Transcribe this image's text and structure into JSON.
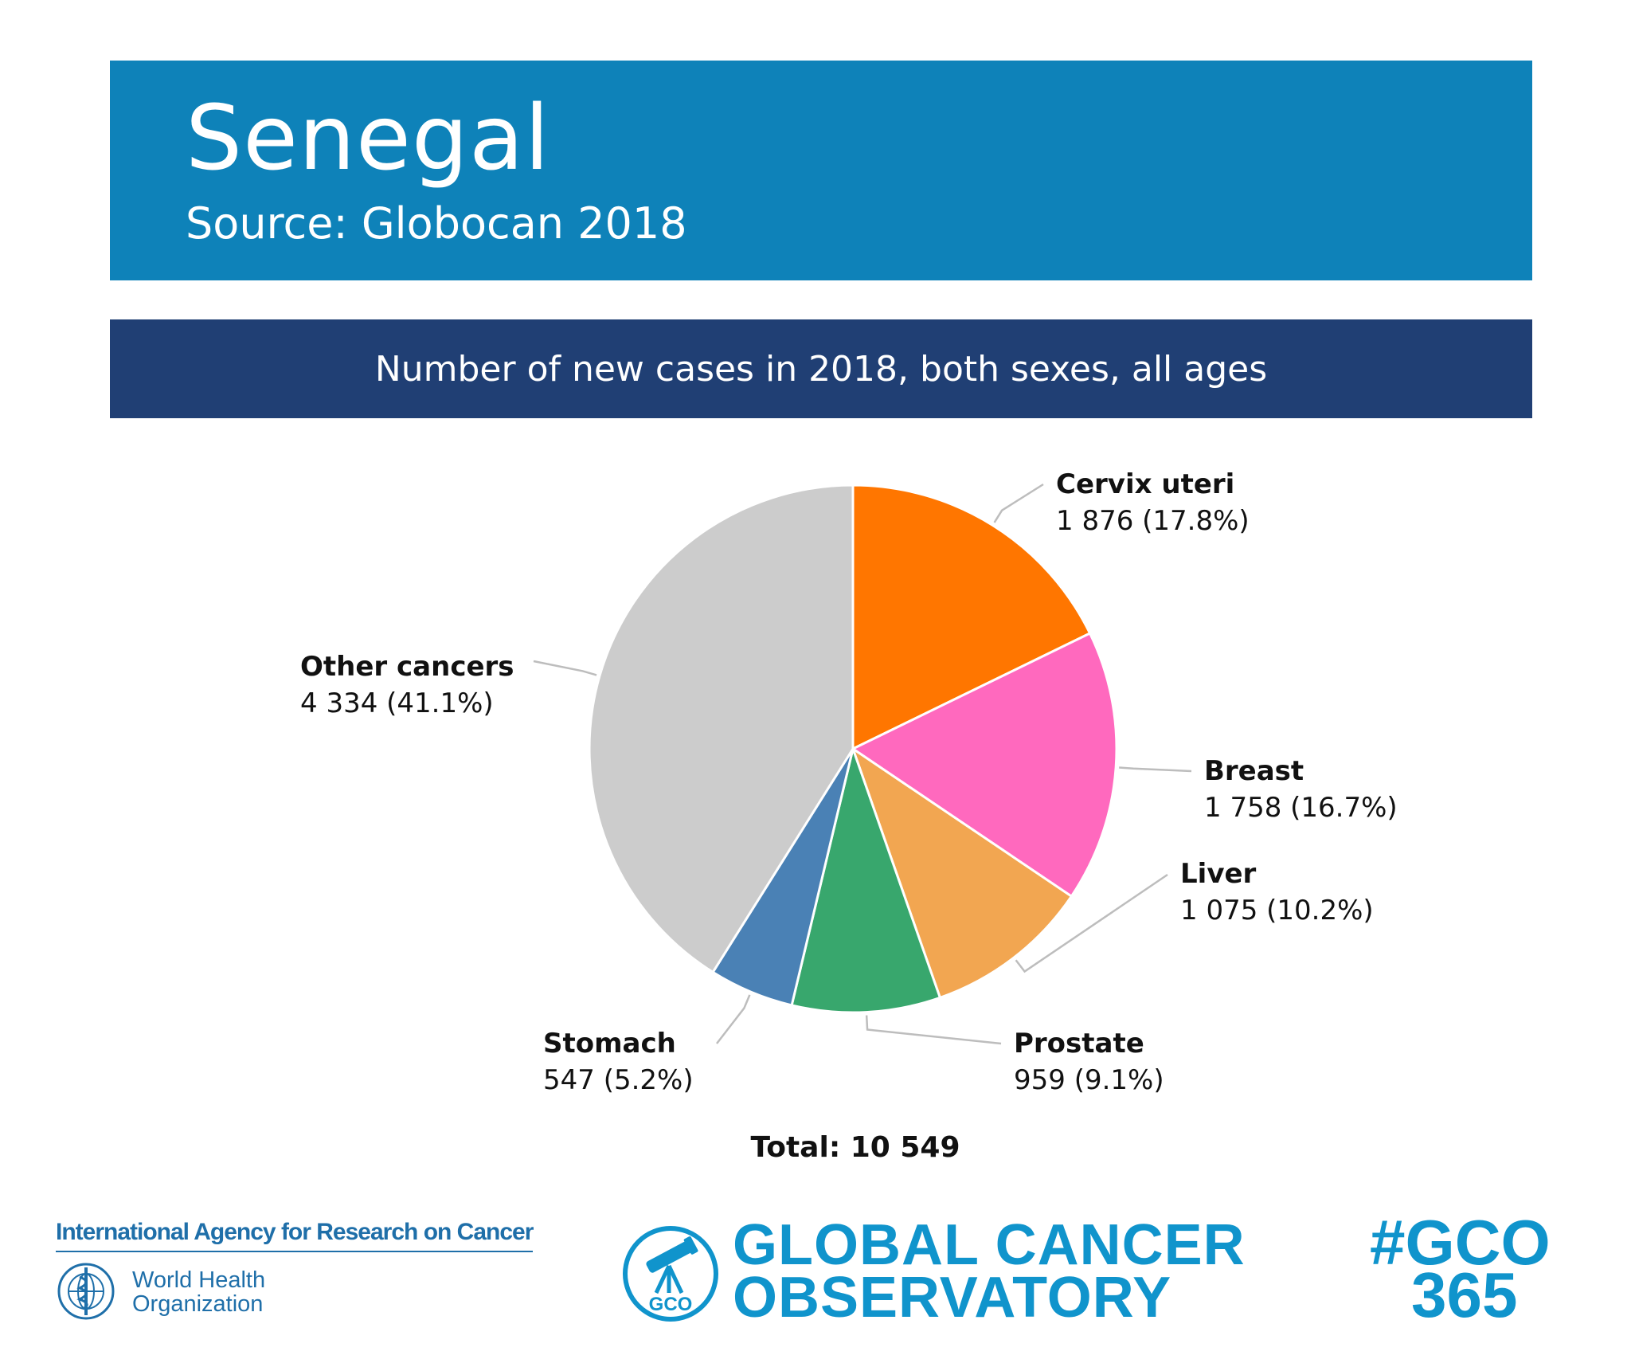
{
  "header": {
    "country": "Senegal",
    "source": "Source: Globocan 2018"
  },
  "subtitle": "Number of new cases in 2018, both sexes, all ages",
  "chart_data": {
    "type": "pie",
    "title": "Number of new cases in 2018, both sexes, all ages",
    "slices": [
      {
        "name": "Cervix uteri",
        "value": 1876,
        "percent": 17.8,
        "display": "1 876 (17.8%)",
        "color": "#ff7600"
      },
      {
        "name": "Breast",
        "value": 1758,
        "percent": 16.7,
        "display": "1 758 (16.7%)",
        "color": "#ff69be"
      },
      {
        "name": "Liver",
        "value": 1075,
        "percent": 10.2,
        "display": "1 075 (10.2%)",
        "color": "#f2a651"
      },
      {
        "name": "Prostate",
        "value": 959,
        "percent": 9.1,
        "display": "959 (9.1%)",
        "color": "#38a76d"
      },
      {
        "name": "Stomach",
        "value": 547,
        "percent": 5.2,
        "display": "547 (5.2%)",
        "color": "#4a81b5"
      },
      {
        "name": "Other cancers",
        "value": 4334,
        "percent": 41.1,
        "display": "4 334 (41.1%)",
        "color": "#cccccc"
      }
    ],
    "total_label": "Total: 10 549"
  },
  "footer": {
    "iarc": "International Agency for Research on Cancer",
    "who_line1": "World Health",
    "who_line2": "Organization",
    "gco_line1": "GLOBAL CANCER",
    "gco_line2": "OBSERVATORY",
    "gco_badge": "GCO",
    "hashtag_line1": "#GCO",
    "hashtag_line2": "365"
  }
}
